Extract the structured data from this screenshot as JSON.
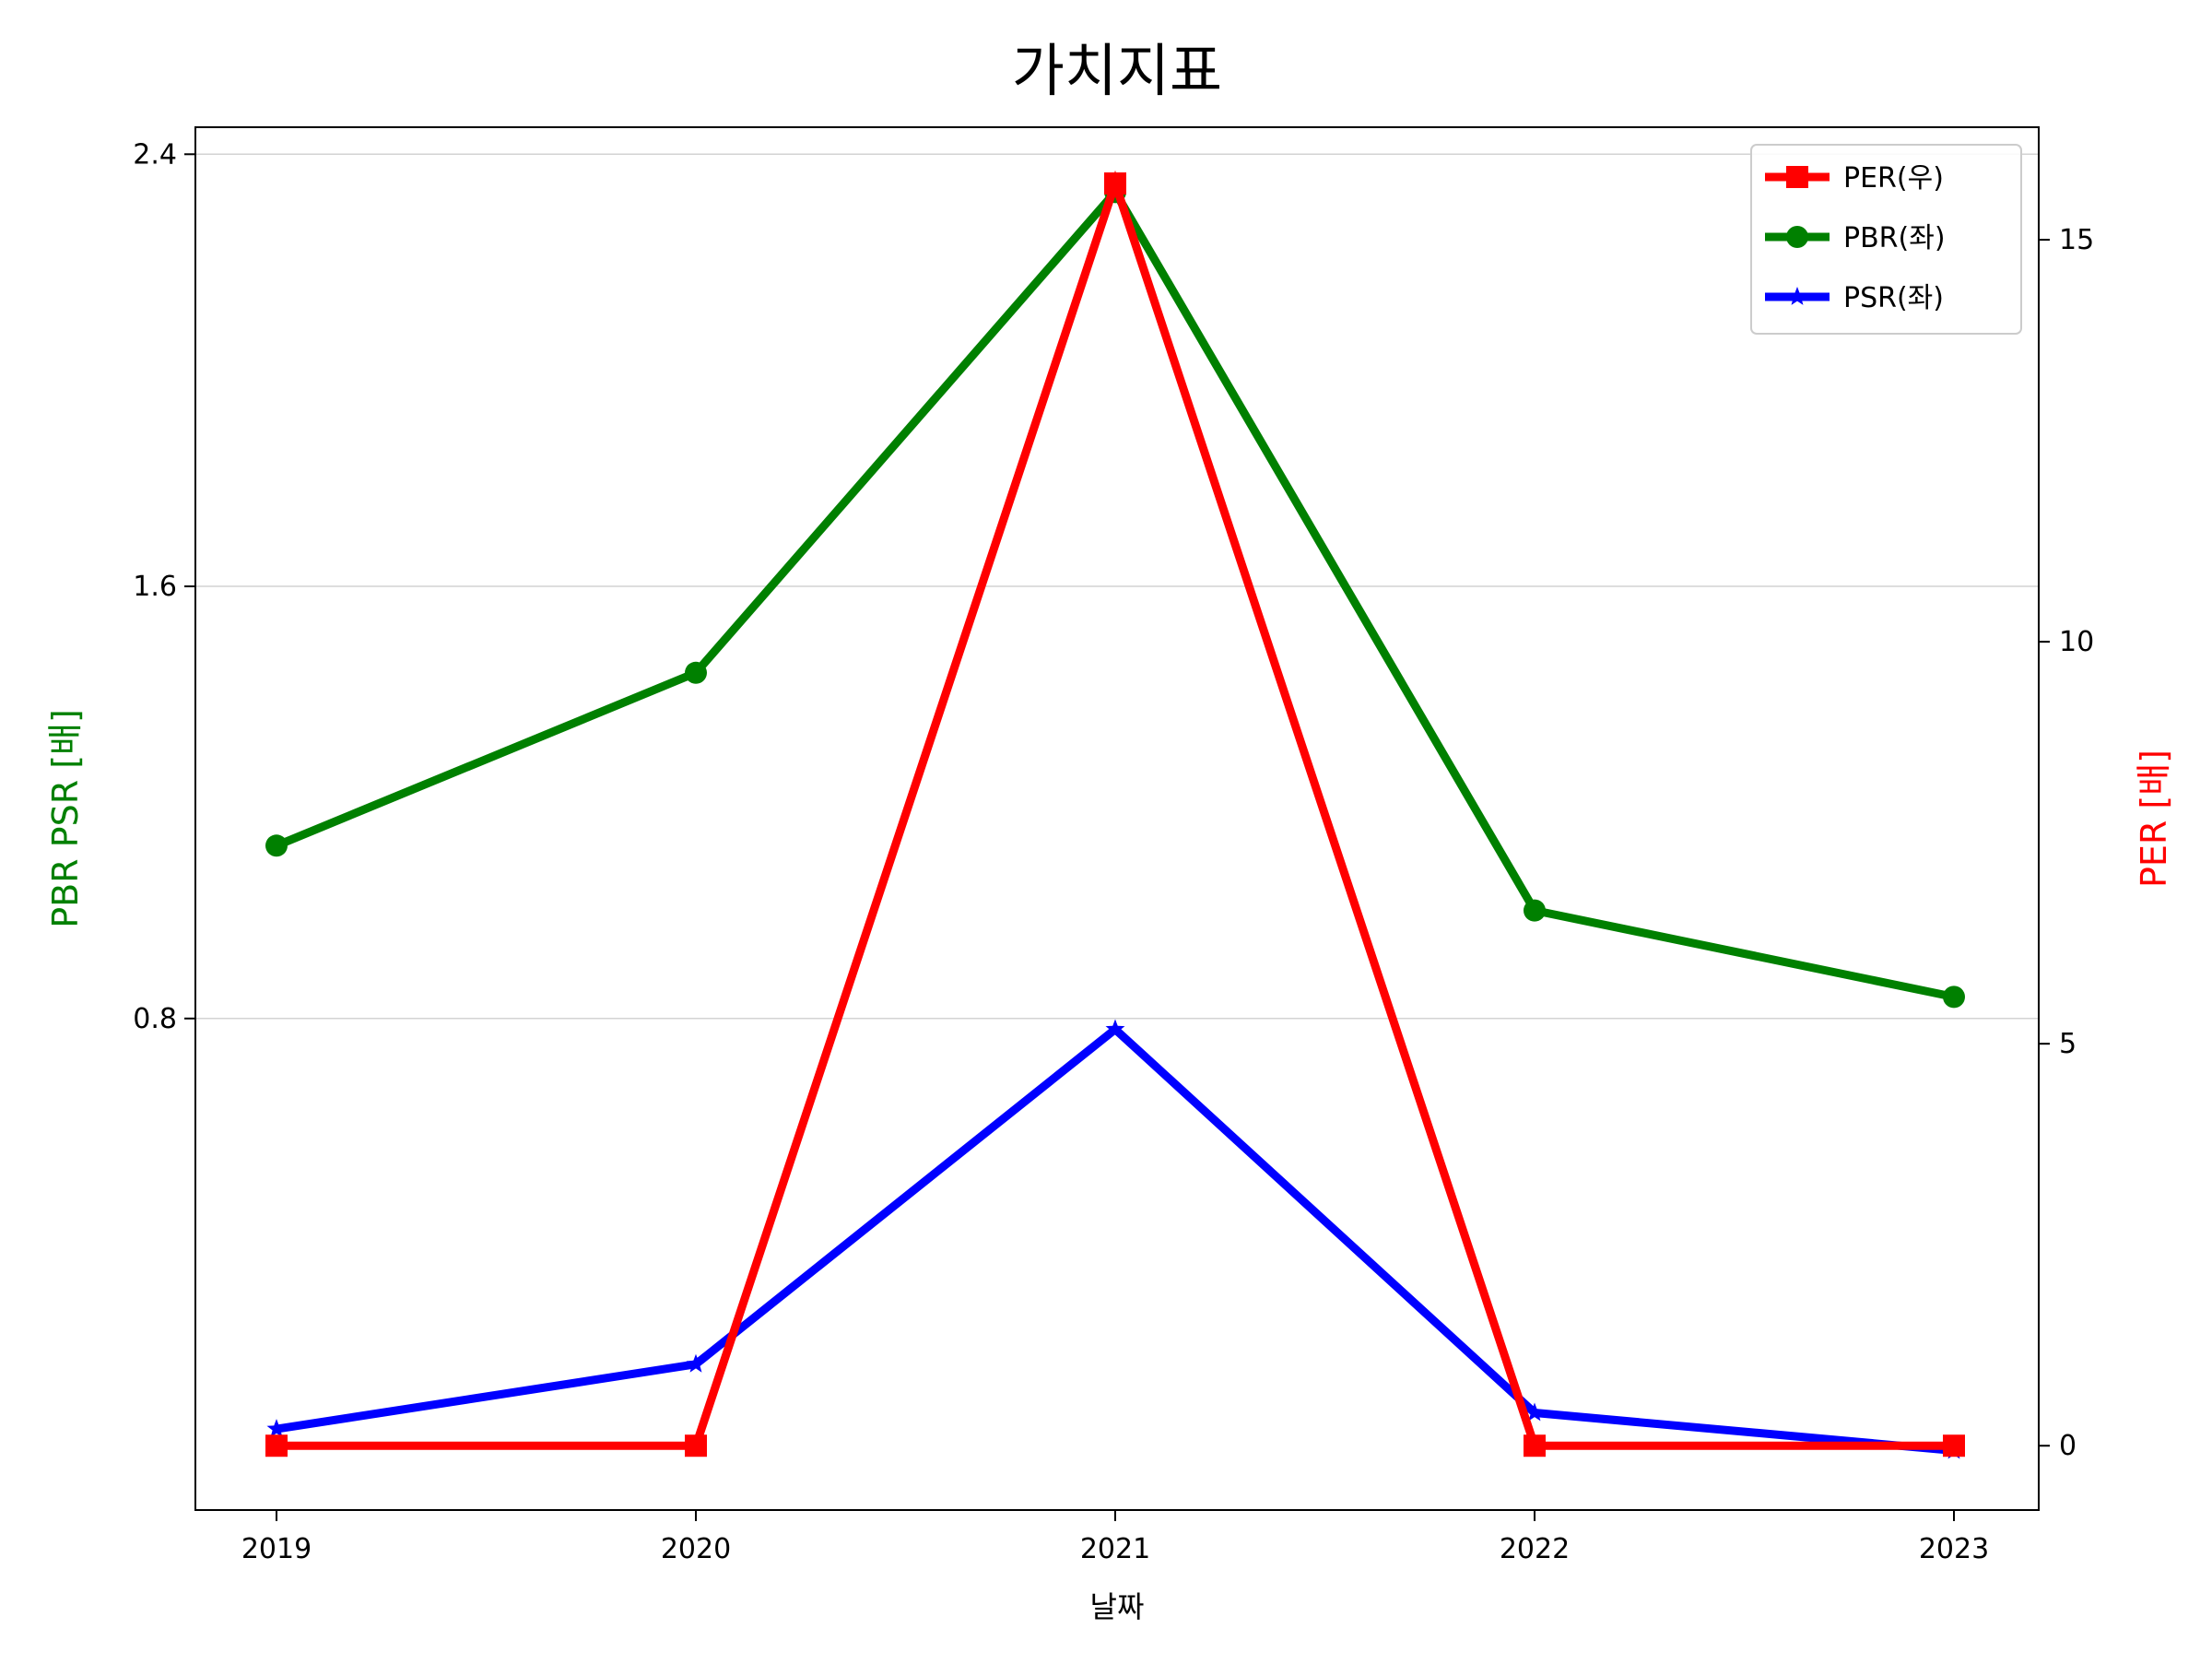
{
  "chart_data": {
    "type": "line",
    "title": "가치지표",
    "xlabel": "날짜",
    "ylabel_left": "PBR PSR [배]",
    "ylabel_right": "PER [배]",
    "categories": [
      "2019",
      "2020",
      "2021",
      "2022",
      "2023"
    ],
    "ylim_left": [
      -0.11,
      2.45
    ],
    "yticks_left": [
      "0.8",
      "1.6",
      "2.4"
    ],
    "ylim_right": [
      -0.8,
      16.4
    ],
    "yticks_right": [
      "0",
      "5",
      "10",
      "15"
    ],
    "grid": "horizontal (left axis)",
    "legend_position": "top-right",
    "series": [
      {
        "name": "PER(우)",
        "axis": "right",
        "color": "#ff0000",
        "marker": "square",
        "values": [
          0,
          0,
          15.7,
          0,
          0
        ]
      },
      {
        "name": "PBR(좌)",
        "axis": "left",
        "color": "#008000",
        "marker": "circle",
        "values": [
          1.12,
          1.44,
          2.33,
          1.0,
          0.84
        ]
      },
      {
        "name": "PSR(좌)",
        "axis": "left",
        "color": "#0000ff",
        "marker": "star",
        "values": [
          0.04,
          0.16,
          0.78,
          0.07,
          0.0
        ]
      }
    ],
    "axis_colors": {
      "left_label": "#008000",
      "right_label": "#ff0000"
    }
  }
}
